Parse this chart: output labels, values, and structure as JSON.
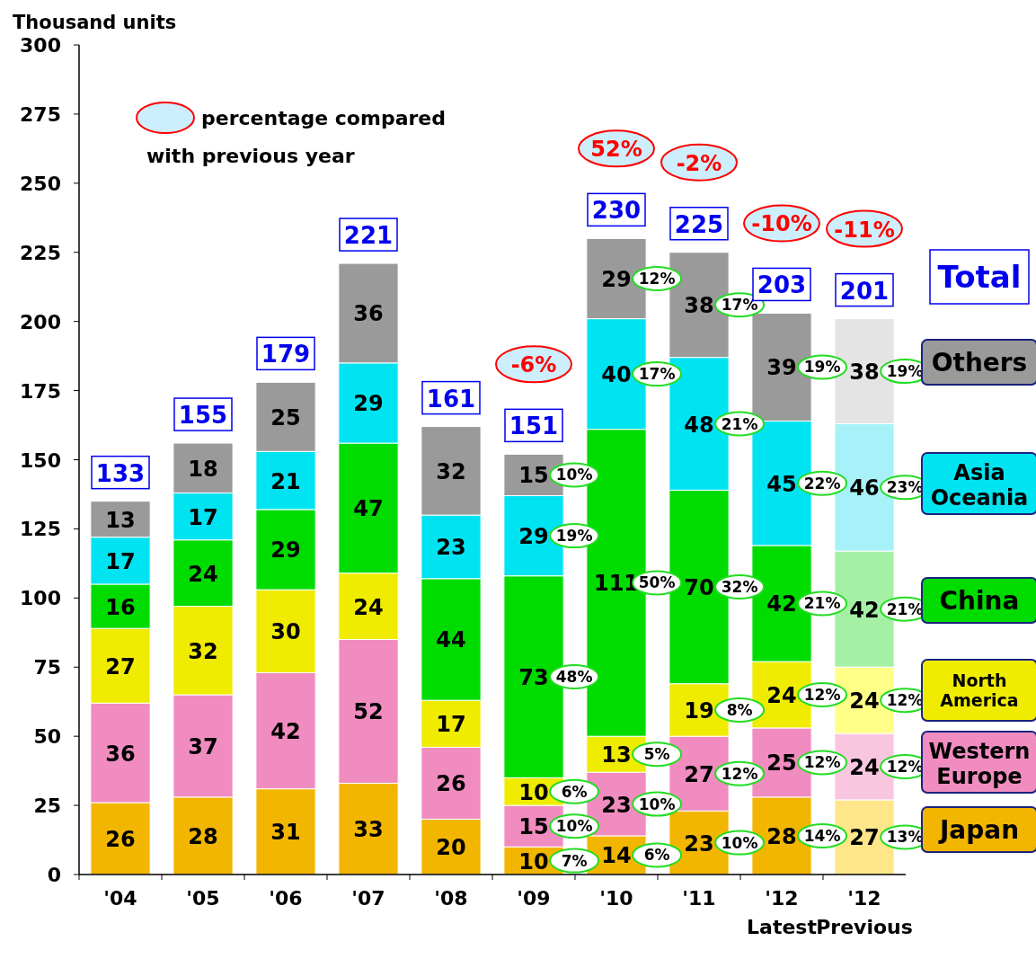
{
  "chart_data": {
    "type": "bar",
    "stacked": true,
    "ylabel": "Thousand units",
    "categories": [
      "'04",
      "'05",
      "'06",
      "'07",
      "'08",
      "'09",
      "'10",
      "'11",
      "'12\nLatest",
      "'12\nPrevious"
    ],
    "ylim": [
      0,
      300
    ],
    "yticks": [
      0,
      25,
      50,
      75,
      100,
      125,
      150,
      175,
      200,
      225,
      250,
      275,
      300
    ],
    "grid": false,
    "legend": "right",
    "legend_title": "Total",
    "data_labels": true,
    "totals": [
      "133",
      "155",
      "179",
      "221",
      "161",
      "151",
      "230",
      "225",
      "203",
      "201"
    ],
    "series": [
      {
        "name": "Japan",
        "color": "#f2b600",
        "colors": [
          "#f2b600",
          "#f2b600",
          "#f2b600",
          "#f2b600",
          "#f2b600",
          "#f2b600",
          "#f2b600",
          "#f2b600",
          "#f2b600",
          "#ffe68a"
        ],
        "values": [
          26,
          28,
          31,
          33,
          20,
          10,
          14,
          23,
          28,
          27
        ]
      },
      {
        "name": "Western Europe",
        "color": "#f08cc0",
        "colors": [
          "#f08cc0",
          "#f08cc0",
          "#f08cc0",
          "#f08cc0",
          "#f08cc0",
          "#f08cc0",
          "#f08cc0",
          "#f08cc0",
          "#f08cc0",
          "#f9c6e0"
        ],
        "values": [
          36,
          37,
          42,
          52,
          26,
          15,
          23,
          27,
          25,
          24
        ]
      },
      {
        "name": "North America",
        "color": "#f0ec00",
        "colors": [
          "#f0ec00",
          "#f0ec00",
          "#f0ec00",
          "#f0ec00",
          "#f0ec00",
          "#f0ec00",
          "#f0ec00",
          "#f0ec00",
          "#f0ec00",
          "#ffff88"
        ],
        "values": [
          27,
          32,
          30,
          24,
          17,
          10,
          13,
          19,
          24,
          24
        ]
      },
      {
        "name": "China",
        "color": "#00dc00",
        "colors": [
          "#00dc00",
          "#00dc00",
          "#00dc00",
          "#00dc00",
          "#00dc00",
          "#00dc00",
          "#00dc00",
          "#00dc00",
          "#00dc00",
          "#a6f0a6"
        ],
        "values": [
          16,
          24,
          29,
          47,
          44,
          73,
          111,
          70,
          42,
          42
        ]
      },
      {
        "name": "Asia Oceania",
        "color": "#00e4f2",
        "colors": [
          "#00e4f2",
          "#00e4f2",
          "#00e4f2",
          "#00e4f2",
          "#00e4f2",
          "#00e4f2",
          "#00e4f2",
          "#00e4f2",
          "#00e4f2",
          "#a6f2f8"
        ],
        "values": [
          17,
          17,
          21,
          29,
          23,
          29,
          40,
          48,
          45,
          46
        ]
      },
      {
        "name": "Others",
        "color": "#9a9a9a",
        "colors": [
          "#9a9a9a",
          "#9a9a9a",
          "#9a9a9a",
          "#9a9a9a",
          "#9a9a9a",
          "#9a9a9a",
          "#9a9a9a",
          "#9a9a9a",
          "#9a9a9a",
          "#e4e4e4"
        ],
        "values": [
          13,
          18,
          25,
          36,
          32,
          15,
          29,
          38,
          39,
          38
        ]
      }
    ],
    "annotations": [
      "percentage compared with previous year",
      "-6%",
      "52%",
      "-2%",
      "-10%",
      "-11%",
      "10%",
      "19%",
      "48%",
      "6%",
      "10%",
      "7%",
      "12%",
      "17%",
      "50%",
      "5%",
      "10%",
      "6%",
      "17%",
      "21%",
      "32%",
      "8%",
      "12%",
      "10%",
      "19%",
      "22%",
      "21%",
      "12%",
      "12%",
      "14%",
      "19%",
      "23%",
      "21%",
      "12%",
      "12%",
      "13%"
    ]
  }
}
